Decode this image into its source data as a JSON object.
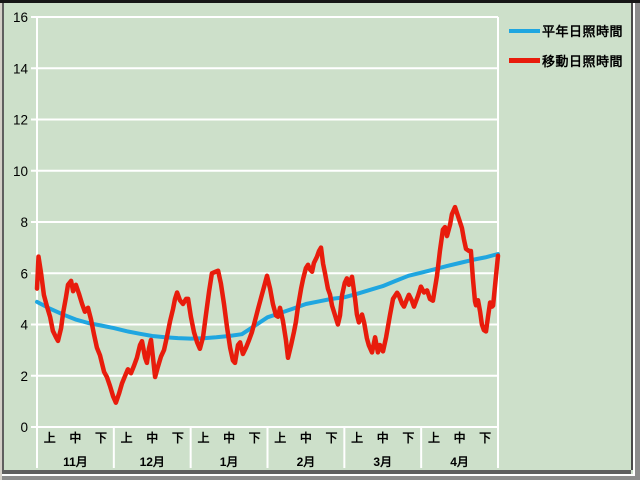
{
  "window": {
    "background_color": "#cde0ca",
    "gridline_color": "#ffffff",
    "text_color": "#000000"
  },
  "legend": {
    "items": [
      {
        "label": "平年日照時間",
        "color": "#1fa6e0"
      },
      {
        "label": "移動日照時間",
        "color": "#e81c0c"
      }
    ]
  },
  "chart_data": {
    "type": "line",
    "title": "",
    "xlabel": "",
    "ylabel": "",
    "ylim": [
      0,
      16
    ],
    "yticks": [
      0,
      2,
      4,
      6,
      8,
      10,
      12,
      14,
      16
    ],
    "grid": "horizontal",
    "legend_position": "top-right",
    "x_axis": {
      "months": [
        "11月",
        "12月",
        "1月",
        "2月",
        "3月",
        "4月"
      ],
      "period_labels": [
        "上",
        "中",
        "下"
      ],
      "unit": "x = ten-day periods (上/中/下, 3 per month, 0–18 over Nov–Apr)"
    },
    "series": [
      {
        "name": "平年日照時間",
        "color": "#1fa6e0",
        "stroke_width": 4,
        "points": [
          [
            0,
            4.88
          ],
          [
            0.5,
            4.62
          ],
          [
            1,
            4.4
          ],
          [
            1.5,
            4.2
          ],
          [
            2,
            4.06
          ],
          [
            2.5,
            3.96
          ],
          [
            3,
            3.86
          ],
          [
            3.5,
            3.74
          ],
          [
            4,
            3.64
          ],
          [
            4.5,
            3.55
          ],
          [
            5,
            3.5
          ],
          [
            5.5,
            3.47
          ],
          [
            6,
            3.45
          ],
          [
            6.5,
            3.46
          ],
          [
            7,
            3.5
          ],
          [
            7.5,
            3.55
          ],
          [
            8,
            3.62
          ],
          [
            8.5,
            3.95
          ],
          [
            9,
            4.28
          ],
          [
            9.5,
            4.45
          ],
          [
            10,
            4.62
          ],
          [
            10.5,
            4.8
          ],
          [
            11,
            4.9
          ],
          [
            11.5,
            5.0
          ],
          [
            12,
            5.06
          ],
          [
            12.5,
            5.2
          ],
          [
            13,
            5.35
          ],
          [
            13.5,
            5.5
          ],
          [
            14,
            5.7
          ],
          [
            14.5,
            5.9
          ],
          [
            15,
            6.02
          ],
          [
            15.5,
            6.15
          ],
          [
            16,
            6.28
          ],
          [
            16.5,
            6.4
          ],
          [
            17,
            6.52
          ],
          [
            17.5,
            6.62
          ],
          [
            18,
            6.75
          ]
        ]
      },
      {
        "name": "移動日照時間",
        "color": "#e81c0c",
        "stroke_width": 4.5,
        "points": [
          [
            0,
            5.4
          ],
          [
            0.06,
            6.65
          ],
          [
            0.16,
            6.0
          ],
          [
            0.27,
            5.15
          ],
          [
            0.39,
            4.7
          ],
          [
            0.51,
            4.3
          ],
          [
            0.62,
            3.75
          ],
          [
            0.74,
            3.5
          ],
          [
            0.82,
            3.36
          ],
          [
            0.94,
            3.86
          ],
          [
            1.02,
            4.45
          ],
          [
            1.13,
            5.05
          ],
          [
            1.21,
            5.55
          ],
          [
            1.33,
            5.7
          ],
          [
            1.41,
            5.3
          ],
          [
            1.52,
            5.55
          ],
          [
            1.64,
            5.2
          ],
          [
            1.76,
            4.8
          ],
          [
            1.87,
            4.5
          ],
          [
            1.99,
            4.65
          ],
          [
            2.11,
            4.2
          ],
          [
            2.23,
            3.6
          ],
          [
            2.34,
            3.1
          ],
          [
            2.46,
            2.8
          ],
          [
            2.62,
            2.15
          ],
          [
            2.73,
            1.95
          ],
          [
            2.85,
            1.6
          ],
          [
            2.97,
            1.2
          ],
          [
            3.08,
            0.95
          ],
          [
            3.2,
            1.3
          ],
          [
            3.32,
            1.7
          ],
          [
            3.44,
            2.0
          ],
          [
            3.55,
            2.25
          ],
          [
            3.67,
            2.1
          ],
          [
            3.79,
            2.4
          ],
          [
            3.9,
            2.7
          ],
          [
            4.02,
            3.2
          ],
          [
            4.1,
            3.35
          ],
          [
            4.22,
            2.7
          ],
          [
            4.29,
            2.5
          ],
          [
            4.37,
            3.05
          ],
          [
            4.45,
            3.4
          ],
          [
            4.53,
            2.7
          ],
          [
            4.61,
            1.95
          ],
          [
            4.72,
            2.35
          ],
          [
            4.84,
            2.75
          ],
          [
            4.96,
            3.0
          ],
          [
            5.08,
            3.55
          ],
          [
            5.19,
            4.1
          ],
          [
            5.31,
            4.6
          ],
          [
            5.39,
            5.0
          ],
          [
            5.47,
            5.25
          ],
          [
            5.58,
            4.95
          ],
          [
            5.7,
            4.8
          ],
          [
            5.82,
            5.0
          ],
          [
            5.9,
            5.0
          ],
          [
            6.01,
            4.3
          ],
          [
            6.13,
            3.7
          ],
          [
            6.25,
            3.3
          ],
          [
            6.36,
            3.05
          ],
          [
            6.48,
            3.5
          ],
          [
            6.6,
            4.4
          ],
          [
            6.72,
            5.3
          ],
          [
            6.83,
            6.0
          ],
          [
            6.95,
            6.05
          ],
          [
            7.07,
            6.1
          ],
          [
            7.18,
            5.6
          ],
          [
            7.3,
            4.8
          ],
          [
            7.42,
            3.9
          ],
          [
            7.54,
            3.1
          ],
          [
            7.65,
            2.6
          ],
          [
            7.73,
            2.5
          ],
          [
            7.85,
            3.2
          ],
          [
            7.93,
            3.3
          ],
          [
            8.04,
            2.85
          ],
          [
            8.16,
            3.1
          ],
          [
            8.28,
            3.4
          ],
          [
            8.39,
            3.7
          ],
          [
            8.51,
            4.15
          ],
          [
            8.63,
            4.6
          ],
          [
            8.75,
            5.05
          ],
          [
            8.86,
            5.45
          ],
          [
            8.98,
            5.9
          ],
          [
            9.1,
            5.4
          ],
          [
            9.21,
            4.8
          ],
          [
            9.33,
            4.35
          ],
          [
            9.41,
            4.3
          ],
          [
            9.49,
            4.65
          ],
          [
            9.6,
            4.15
          ],
          [
            9.72,
            3.4
          ],
          [
            9.8,
            2.7
          ],
          [
            9.92,
            3.2
          ],
          [
            10.03,
            3.7
          ],
          [
            10.11,
            4.1
          ],
          [
            10.19,
            4.7
          ],
          [
            10.31,
            5.4
          ],
          [
            10.39,
            5.78
          ],
          [
            10.5,
            6.2
          ],
          [
            10.58,
            6.33
          ],
          [
            10.66,
            6.15
          ],
          [
            10.74,
            6.06
          ],
          [
            10.81,
            6.4
          ],
          [
            10.93,
            6.64
          ],
          [
            11.01,
            6.87
          ],
          [
            11.09,
            7.0
          ],
          [
            11.17,
            6.37
          ],
          [
            11.24,
            6.02
          ],
          [
            11.36,
            5.4
          ],
          [
            11.44,
            5.17
          ],
          [
            11.52,
            4.74
          ],
          [
            11.64,
            4.35
          ],
          [
            11.75,
            4.0
          ],
          [
            11.83,
            4.35
          ],
          [
            11.91,
            5.13
          ],
          [
            12.02,
            5.63
          ],
          [
            12.1,
            5.8
          ],
          [
            12.18,
            5.55
          ],
          [
            12.3,
            5.86
          ],
          [
            12.42,
            5.0
          ],
          [
            12.49,
            4.39
          ],
          [
            12.57,
            4.08
          ],
          [
            12.69,
            4.39
          ],
          [
            12.77,
            4.08
          ],
          [
            12.88,
            3.46
          ],
          [
            12.96,
            3.18
          ],
          [
            13.08,
            2.91
          ],
          [
            13.2,
            3.5
          ],
          [
            13.31,
            2.91
          ],
          [
            13.39,
            3.2
          ],
          [
            13.51,
            2.95
          ],
          [
            13.63,
            3.5
          ],
          [
            13.78,
            4.35
          ],
          [
            13.9,
            5.0
          ],
          [
            14.06,
            5.24
          ],
          [
            14.13,
            5.13
          ],
          [
            14.25,
            4.82
          ],
          [
            14.33,
            4.7
          ],
          [
            14.45,
            5.0
          ],
          [
            14.52,
            5.16
          ],
          [
            14.64,
            4.93
          ],
          [
            14.72,
            4.7
          ],
          [
            14.88,
            5.13
          ],
          [
            14.99,
            5.48
          ],
          [
            15.11,
            5.25
          ],
          [
            15.23,
            5.33
          ],
          [
            15.34,
            5.0
          ],
          [
            15.46,
            4.93
          ],
          [
            15.62,
            5.9
          ],
          [
            15.73,
            6.87
          ],
          [
            15.85,
            7.7
          ],
          [
            15.93,
            7.8
          ],
          [
            16.01,
            7.45
          ],
          [
            16.13,
            7.9
          ],
          [
            16.2,
            8.3
          ],
          [
            16.32,
            8.58
          ],
          [
            16.44,
            8.23
          ],
          [
            16.59,
            7.77
          ],
          [
            16.67,
            7.33
          ],
          [
            16.75,
            6.95
          ],
          [
            16.87,
            6.87
          ],
          [
            16.94,
            6.87
          ],
          [
            17.02,
            5.8
          ],
          [
            17.1,
            4.9
          ],
          [
            17.14,
            4.75
          ],
          [
            17.22,
            4.95
          ],
          [
            17.3,
            4.5
          ],
          [
            17.37,
            4.0
          ],
          [
            17.45,
            3.78
          ],
          [
            17.53,
            3.73
          ],
          [
            17.61,
            4.3
          ],
          [
            17.69,
            4.86
          ],
          [
            17.77,
            4.7
          ],
          [
            17.81,
            4.74
          ],
          [
            17.92,
            5.9
          ],
          [
            18,
            6.68
          ]
        ]
      }
    ]
  }
}
